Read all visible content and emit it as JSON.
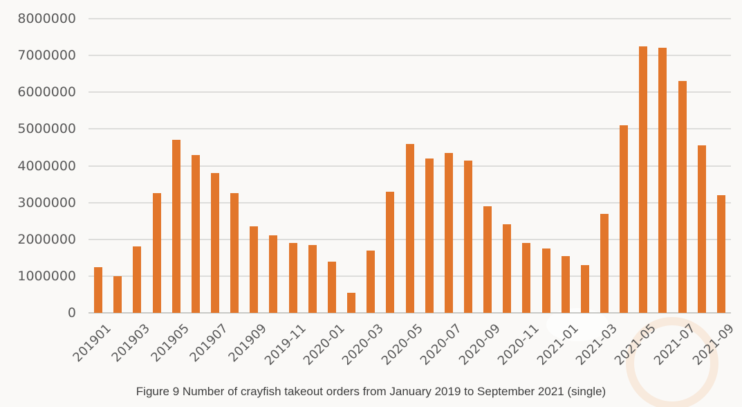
{
  "figure": {
    "caption": "Figure 9 Number of crayfish takeout orders from January 2019 to September 2021 (single)"
  },
  "chart_data": {
    "type": "bar",
    "title": "Figure 9 Number of crayfish takeout orders from January 2019 to September 2021 (single)",
    "xlabel": "",
    "ylabel": "",
    "ylim": [
      0,
      8000000
    ],
    "y_tick_interval": 1000000,
    "grid": true,
    "legend": "none",
    "bar_color": "#e2762b",
    "y_tick_labels": [
      "8000000",
      "7000000",
      "6000000",
      "5000000",
      "4000000",
      "3000000",
      "2000000",
      "1000000",
      "0"
    ],
    "x_tick_labels": [
      "201901",
      "201903",
      "201905",
      "201907",
      "201909",
      "2019-11",
      "2020-01",
      "2020-03",
      "2020-05",
      "2020-07",
      "2020-09",
      "2020-11",
      "2021-01",
      "2021-03",
      "2021-05",
      "2021-07",
      "2021-09"
    ],
    "categories": [
      "201901",
      "201902",
      "201903",
      "201904",
      "201905",
      "201906",
      "201907",
      "201908",
      "201909",
      "2019-10",
      "2019-11",
      "2019-12",
      "2020-01",
      "2020-02",
      "2020-03",
      "2020-04",
      "2020-05",
      "2020-06",
      "2020-07",
      "2020-08",
      "2020-09",
      "2020-10",
      "2020-11",
      "2020-12",
      "2021-01",
      "2021-02",
      "2021-03",
      "2021-04",
      "2021-05",
      "2021-06",
      "2021-07",
      "2021-08",
      "2021-09"
    ],
    "values": [
      1250000,
      1000000,
      1800000,
      3250000,
      4700000,
      4300000,
      3800000,
      3250000,
      2350000,
      2100000,
      1900000,
      1850000,
      1400000,
      550000,
      1700000,
      3300000,
      4600000,
      4200000,
      4350000,
      4150000,
      2900000,
      2400000,
      1900000,
      1750000,
      1550000,
      1300000,
      2700000,
      5100000,
      7250000,
      7200000,
      6300000,
      4550000,
      3200000
    ]
  },
  "style": {
    "background": "#faf9f7",
    "grid_color": "#dddddb",
    "axis_color": "#c9c9c6",
    "label_color": "#595959",
    "caption_color": "#3d3d3d",
    "bar_color": "#e2762b"
  }
}
